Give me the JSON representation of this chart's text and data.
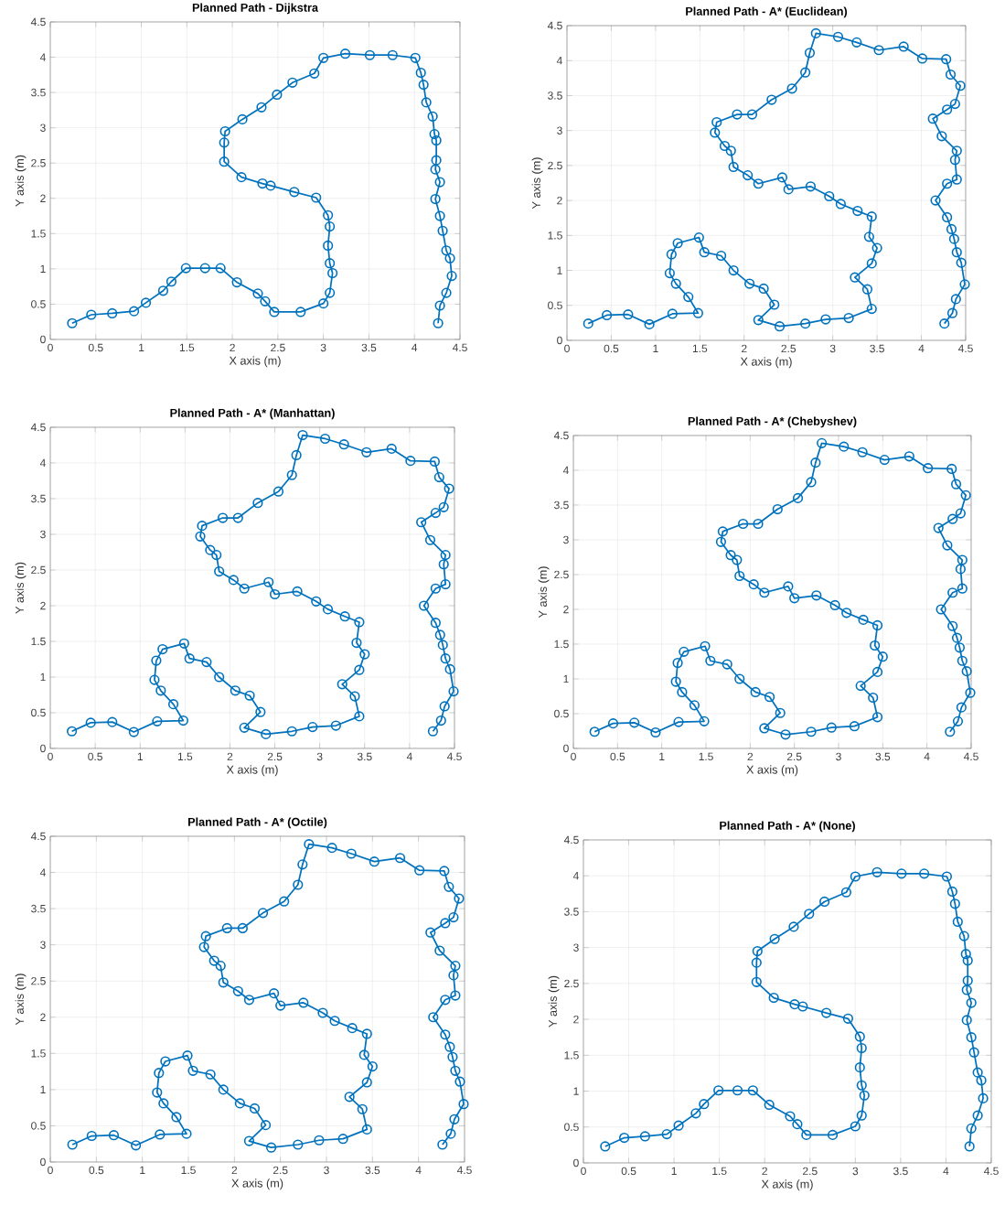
{
  "chart_data": [
    {
      "type": "line",
      "title": "Planned Path - Dijkstra",
      "xlabel": "X axis (m)",
      "ylabel": "Y axis (m)",
      "color": "#0072bd",
      "marker": "circle",
      "line_style": "solid",
      "grid": true,
      "xlim": [
        0,
        4.5
      ],
      "ylim": [
        0,
        4.5
      ],
      "xticks": [
        0,
        0.5,
        1,
        1.5,
        2,
        2.5,
        3,
        3.5,
        4,
        4.5
      ],
      "yticks": [
        0,
        0.5,
        1,
        1.5,
        2,
        2.5,
        3,
        3.5,
        4,
        4.5
      ],
      "x": [
        0.24,
        0.45,
        0.68,
        0.92,
        1.05,
        1.24,
        1.33,
        1.49,
        1.7,
        1.87,
        2.05,
        2.28,
        2.36,
        2.46,
        2.75,
        3.0,
        3.07,
        3.1,
        3.07,
        3.05,
        3.07,
        3.05,
        2.92,
        2.68,
        2.42,
        2.33,
        2.1,
        1.91,
        1.91,
        1.92,
        2.11,
        2.32,
        2.49,
        2.66,
        2.9,
        3.0,
        3.24,
        3.51,
        3.76,
        4.01,
        4.07,
        4.1,
        4.13,
        4.2,
        4.22,
        4.24,
        4.24,
        4.23,
        4.28,
        4.23,
        4.28,
        4.31,
        4.35,
        4.39,
        4.41,
        4.35,
        4.28,
        4.26
      ],
      "values": [
        0.23,
        0.35,
        0.37,
        0.4,
        0.52,
        0.69,
        0.82,
        1.01,
        1.01,
        1.01,
        0.81,
        0.65,
        0.54,
        0.39,
        0.39,
        0.51,
        0.66,
        0.94,
        1.08,
        1.33,
        1.6,
        1.76,
        2.01,
        2.09,
        2.18,
        2.21,
        2.3,
        2.52,
        2.79,
        2.95,
        3.12,
        3.29,
        3.47,
        3.64,
        3.77,
        3.99,
        4.05,
        4.03,
        4.03,
        3.99,
        3.78,
        3.61,
        3.36,
        3.16,
        2.91,
        2.82,
        2.54,
        2.41,
        2.23,
        1.99,
        1.75,
        1.54,
        1.26,
        1.15,
        0.9,
        0.66,
        0.48,
        0.23
      ]
    },
    {
      "type": "line",
      "title": "Planned Path - A* (Euclidean)",
      "xlabel": "X axis (m)",
      "ylabel": "Y axis (m)",
      "color": "#0072bd",
      "marker": "circle",
      "line_style": "solid",
      "grid": true,
      "xlim": [
        0,
        4.5
      ],
      "ylim": [
        0,
        4.5
      ],
      "xticks": [
        0,
        0.5,
        1,
        1.5,
        2,
        2.5,
        3,
        3.5,
        4,
        4.5
      ],
      "yticks": [
        0,
        0.5,
        1,
        1.5,
        2,
        2.5,
        3,
        3.5,
        4,
        4.5
      ],
      "x": [
        0.24,
        0.45,
        0.69,
        0.93,
        1.19,
        1.48,
        1.37,
        1.23,
        1.16,
        1.18,
        1.25,
        1.49,
        1.55,
        1.74,
        1.88,
        2.06,
        2.22,
        2.34,
        2.16,
        2.4,
        2.69,
        2.92,
        3.18,
        3.44,
        3.39,
        3.25,
        3.44,
        3.5,
        3.41,
        3.44,
        3.28,
        3.09,
        2.96,
        2.75,
        2.5,
        2.43,
        2.16,
        2.04,
        1.88,
        1.85,
        1.78,
        1.67,
        1.69,
        1.92,
        2.09,
        2.31,
        2.54,
        2.69,
        2.74,
        2.81,
        3.06,
        3.27,
        3.52,
        3.8,
        4.01,
        4.28,
        4.33,
        4.44,
        4.38,
        4.29,
        4.13,
        4.23,
        4.4,
        4.38,
        4.4,
        4.29,
        4.16,
        4.29,
        4.34,
        4.37,
        4.4,
        4.45,
        4.49,
        4.39,
        4.35,
        4.26
      ],
      "values": [
        0.24,
        0.36,
        0.37,
        0.23,
        0.38,
        0.39,
        0.62,
        0.81,
        0.96,
        1.23,
        1.39,
        1.47,
        1.26,
        1.21,
        1.0,
        0.81,
        0.74,
        0.51,
        0.29,
        0.2,
        0.24,
        0.3,
        0.32,
        0.45,
        0.73,
        0.9,
        1.1,
        1.32,
        1.48,
        1.77,
        1.85,
        1.95,
        2.06,
        2.2,
        2.16,
        2.33,
        2.24,
        2.36,
        2.48,
        2.71,
        2.78,
        2.97,
        3.12,
        3.23,
        3.23,
        3.44,
        3.6,
        3.83,
        4.11,
        4.39,
        4.34,
        4.26,
        4.15,
        4.2,
        4.03,
        4.02,
        3.8,
        3.64,
        3.38,
        3.3,
        3.17,
        2.92,
        2.71,
        2.58,
        2.3,
        2.24,
        2.0,
        1.76,
        1.59,
        1.45,
        1.26,
        1.11,
        0.8,
        0.59,
        0.39,
        0.24
      ]
    },
    {
      "type": "line",
      "title": "Planned Path - A* (Manhattan)",
      "xlabel": "X axis (m)",
      "ylabel": "Y axis (m)",
      "color": "#0072bd",
      "marker": "circle",
      "line_style": "solid",
      "grid": true,
      "xlim": [
        0,
        4.5
      ],
      "ylim": [
        0,
        4.5
      ],
      "xticks": [
        0,
        0.5,
        1,
        1.5,
        2,
        2.5,
        3,
        3.5,
        4,
        4.5
      ],
      "yticks": [
        0,
        0.5,
        1,
        1.5,
        2,
        2.5,
        3,
        3.5,
        4,
        4.5
      ],
      "x": [
        0.24,
        0.45,
        0.69,
        0.93,
        1.19,
        1.48,
        1.37,
        1.23,
        1.16,
        1.18,
        1.25,
        1.49,
        1.55,
        1.74,
        1.88,
        2.06,
        2.22,
        2.34,
        2.16,
        2.4,
        2.69,
        2.92,
        3.18,
        3.44,
        3.39,
        3.25,
        3.44,
        3.5,
        3.41,
        3.44,
        3.28,
        3.09,
        2.96,
        2.75,
        2.5,
        2.43,
        2.16,
        2.04,
        1.88,
        1.85,
        1.78,
        1.67,
        1.69,
        1.92,
        2.09,
        2.31,
        2.54,
        2.69,
        2.74,
        2.81,
        3.06,
        3.27,
        3.52,
        3.8,
        4.01,
        4.28,
        4.33,
        4.44,
        4.38,
        4.29,
        4.13,
        4.23,
        4.4,
        4.38,
        4.4,
        4.29,
        4.16,
        4.29,
        4.34,
        4.37,
        4.4,
        4.45,
        4.49,
        4.39,
        4.35,
        4.26
      ],
      "values": [
        0.24,
        0.36,
        0.37,
        0.23,
        0.38,
        0.39,
        0.62,
        0.81,
        0.96,
        1.23,
        1.39,
        1.47,
        1.26,
        1.21,
        1.0,
        0.81,
        0.74,
        0.51,
        0.29,
        0.2,
        0.24,
        0.3,
        0.32,
        0.45,
        0.73,
        0.9,
        1.1,
        1.32,
        1.48,
        1.77,
        1.85,
        1.95,
        2.06,
        2.2,
        2.16,
        2.33,
        2.24,
        2.36,
        2.48,
        2.71,
        2.78,
        2.97,
        3.12,
        3.23,
        3.23,
        3.44,
        3.6,
        3.83,
        4.11,
        4.39,
        4.34,
        4.26,
        4.15,
        4.2,
        4.03,
        4.02,
        3.8,
        3.64,
        3.38,
        3.3,
        3.17,
        2.92,
        2.71,
        2.58,
        2.3,
        2.24,
        2.0,
        1.76,
        1.59,
        1.45,
        1.26,
        1.11,
        0.8,
        0.59,
        0.39,
        0.24
      ]
    },
    {
      "type": "line",
      "title": "Planned Path - A* (Chebyshev)",
      "xlabel": "X axis (m)",
      "ylabel": "Y axis (m)",
      "color": "#0072bd",
      "marker": "circle",
      "line_style": "solid",
      "grid": true,
      "xlim": [
        0,
        4.5
      ],
      "ylim": [
        0,
        4.5
      ],
      "xticks": [
        0,
        0.5,
        1,
        1.5,
        2,
        2.5,
        3,
        3.5,
        4,
        4.5
      ],
      "yticks": [
        0,
        0.5,
        1,
        1.5,
        2,
        2.5,
        3,
        3.5,
        4,
        4.5
      ],
      "x": [
        0.24,
        0.45,
        0.69,
        0.93,
        1.19,
        1.48,
        1.37,
        1.23,
        1.16,
        1.18,
        1.25,
        1.49,
        1.55,
        1.74,
        1.88,
        2.06,
        2.22,
        2.34,
        2.16,
        2.4,
        2.69,
        2.92,
        3.18,
        3.44,
        3.39,
        3.25,
        3.44,
        3.5,
        3.41,
        3.44,
        3.28,
        3.09,
        2.96,
        2.75,
        2.5,
        2.43,
        2.16,
        2.04,
        1.88,
        1.85,
        1.78,
        1.67,
        1.69,
        1.92,
        2.09,
        2.31,
        2.54,
        2.69,
        2.74,
        2.81,
        3.06,
        3.27,
        3.52,
        3.8,
        4.01,
        4.28,
        4.33,
        4.44,
        4.38,
        4.29,
        4.13,
        4.23,
        4.4,
        4.38,
        4.4,
        4.29,
        4.16,
        4.29,
        4.34,
        4.37,
        4.4,
        4.45,
        4.49,
        4.39,
        4.35,
        4.26
      ],
      "values": [
        0.24,
        0.36,
        0.37,
        0.23,
        0.38,
        0.39,
        0.62,
        0.81,
        0.96,
        1.23,
        1.39,
        1.47,
        1.26,
        1.21,
        1.0,
        0.81,
        0.74,
        0.51,
        0.29,
        0.2,
        0.24,
        0.3,
        0.32,
        0.45,
        0.73,
        0.9,
        1.1,
        1.32,
        1.48,
        1.77,
        1.85,
        1.95,
        2.06,
        2.2,
        2.16,
        2.33,
        2.24,
        2.36,
        2.48,
        2.71,
        2.78,
        2.97,
        3.12,
        3.23,
        3.23,
        3.44,
        3.6,
        3.83,
        4.11,
        4.39,
        4.34,
        4.26,
        4.15,
        4.2,
        4.03,
        4.02,
        3.8,
        3.64,
        3.38,
        3.3,
        3.17,
        2.92,
        2.71,
        2.58,
        2.3,
        2.24,
        2.0,
        1.76,
        1.59,
        1.45,
        1.26,
        1.11,
        0.8,
        0.59,
        0.39,
        0.24
      ]
    },
    {
      "type": "line",
      "title": "Planned Path - A* (Octile)",
      "xlabel": "X axis (m)",
      "ylabel": "Y axis (m)",
      "color": "#0072bd",
      "marker": "circle",
      "line_style": "solid",
      "grid": true,
      "xlim": [
        0,
        4.5
      ],
      "ylim": [
        0,
        4.5
      ],
      "xticks": [
        0,
        0.5,
        1,
        1.5,
        2,
        2.5,
        3,
        3.5,
        4,
        4.5
      ],
      "yticks": [
        0,
        0.5,
        1,
        1.5,
        2,
        2.5,
        3,
        3.5,
        4,
        4.5
      ],
      "x": [
        0.24,
        0.45,
        0.69,
        0.93,
        1.19,
        1.48,
        1.37,
        1.23,
        1.16,
        1.18,
        1.25,
        1.49,
        1.55,
        1.74,
        1.88,
        2.06,
        2.22,
        2.34,
        2.16,
        2.4,
        2.69,
        2.92,
        3.18,
        3.44,
        3.39,
        3.25,
        3.44,
        3.5,
        3.41,
        3.44,
        3.28,
        3.09,
        2.96,
        2.75,
        2.5,
        2.43,
        2.16,
        2.04,
        1.88,
        1.85,
        1.78,
        1.67,
        1.69,
        1.92,
        2.09,
        2.31,
        2.54,
        2.69,
        2.74,
        2.81,
        3.06,
        3.27,
        3.52,
        3.8,
        4.01,
        4.28,
        4.33,
        4.44,
        4.38,
        4.29,
        4.13,
        4.23,
        4.4,
        4.38,
        4.4,
        4.29,
        4.16,
        4.29,
        4.34,
        4.37,
        4.4,
        4.45,
        4.49,
        4.39,
        4.35,
        4.26
      ],
      "values": [
        0.24,
        0.36,
        0.37,
        0.23,
        0.38,
        0.39,
        0.62,
        0.81,
        0.96,
        1.23,
        1.39,
        1.47,
        1.26,
        1.21,
        1.0,
        0.81,
        0.74,
        0.51,
        0.29,
        0.2,
        0.24,
        0.3,
        0.32,
        0.45,
        0.73,
        0.9,
        1.1,
        1.32,
        1.48,
        1.77,
        1.85,
        1.95,
        2.06,
        2.2,
        2.16,
        2.33,
        2.24,
        2.36,
        2.48,
        2.71,
        2.78,
        2.97,
        3.12,
        3.23,
        3.23,
        3.44,
        3.6,
        3.83,
        4.11,
        4.39,
        4.34,
        4.26,
        4.15,
        4.2,
        4.03,
        4.02,
        3.8,
        3.64,
        3.38,
        3.3,
        3.17,
        2.92,
        2.71,
        2.58,
        2.3,
        2.24,
        2.0,
        1.76,
        1.59,
        1.45,
        1.26,
        1.11,
        0.8,
        0.59,
        0.39,
        0.24
      ]
    },
    {
      "type": "line",
      "title": "Planned Path - A* (None)",
      "xlabel": "X axis (m)",
      "ylabel": "Y axis (m)",
      "color": "#0072bd",
      "marker": "circle",
      "line_style": "solid",
      "grid": true,
      "xlim": [
        0,
        4.5
      ],
      "ylim": [
        0,
        4.5
      ],
      "xticks": [
        0,
        0.5,
        1,
        1.5,
        2,
        2.5,
        3,
        3.5,
        4,
        4.5
      ],
      "yticks": [
        0,
        0.5,
        1,
        1.5,
        2,
        2.5,
        3,
        3.5,
        4,
        4.5
      ],
      "x": [
        0.24,
        0.45,
        0.68,
        0.92,
        1.05,
        1.24,
        1.33,
        1.49,
        1.7,
        1.87,
        2.05,
        2.28,
        2.36,
        2.46,
        2.75,
        3.0,
        3.07,
        3.1,
        3.07,
        3.05,
        3.07,
        3.05,
        2.92,
        2.68,
        2.42,
        2.33,
        2.1,
        1.91,
        1.91,
        1.92,
        2.11,
        2.32,
        2.49,
        2.66,
        2.9,
        3.0,
        3.24,
        3.51,
        3.76,
        4.01,
        4.07,
        4.1,
        4.13,
        4.2,
        4.22,
        4.24,
        4.24,
        4.23,
        4.28,
        4.23,
        4.28,
        4.31,
        4.35,
        4.39,
        4.41,
        4.35,
        4.28,
        4.26
      ],
      "values": [
        0.23,
        0.35,
        0.37,
        0.4,
        0.52,
        0.69,
        0.82,
        1.01,
        1.01,
        1.01,
        0.81,
        0.65,
        0.54,
        0.39,
        0.39,
        0.51,
        0.66,
        0.94,
        1.08,
        1.33,
        1.6,
        1.76,
        2.01,
        2.09,
        2.18,
        2.21,
        2.3,
        2.52,
        2.79,
        2.95,
        3.12,
        3.29,
        3.47,
        3.64,
        3.77,
        3.99,
        4.05,
        4.03,
        4.03,
        3.99,
        3.78,
        3.61,
        3.36,
        3.16,
        2.91,
        2.82,
        2.54,
        2.41,
        2.23,
        1.99,
        1.75,
        1.54,
        1.26,
        1.15,
        0.9,
        0.66,
        0.48,
        0.23
      ]
    }
  ]
}
